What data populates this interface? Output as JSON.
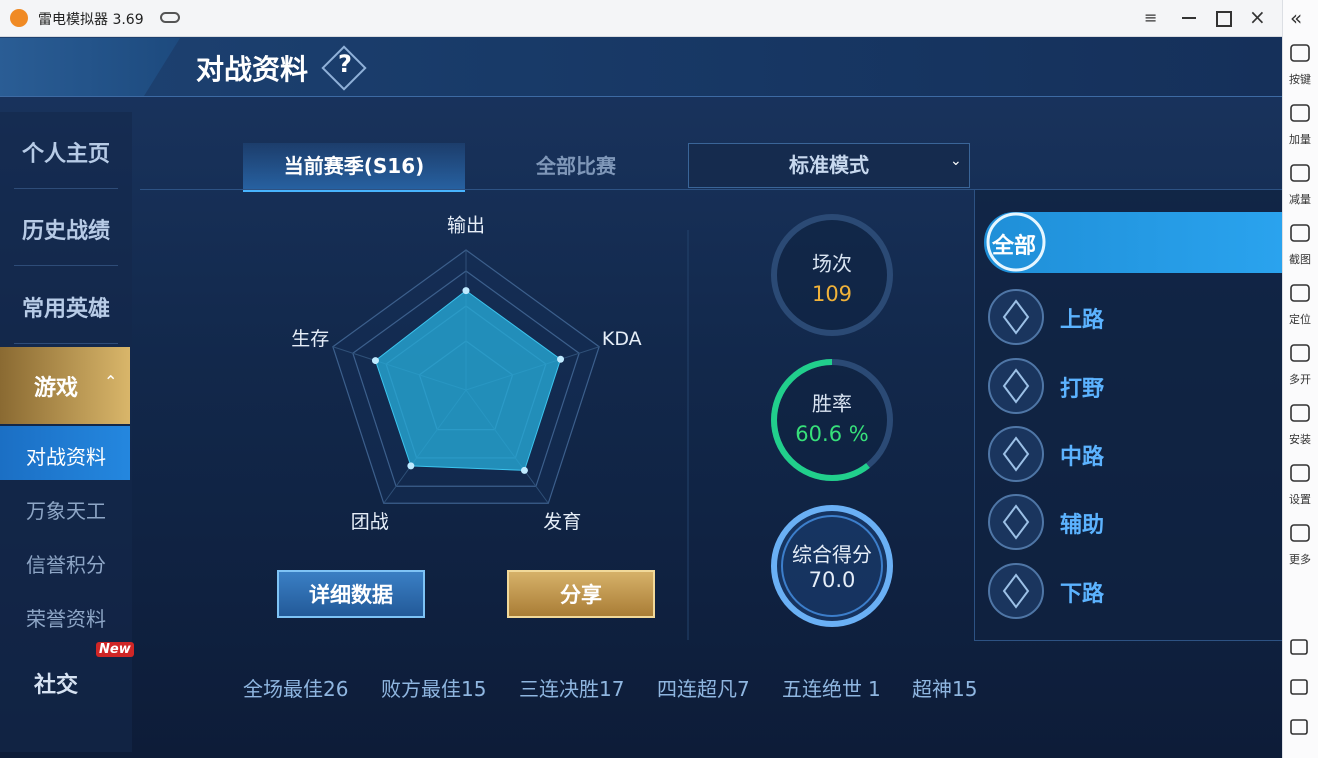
{
  "window": {
    "title": "雷电模拟器 3.69"
  },
  "header": {
    "title": "对战资料",
    "help": "?"
  },
  "menu": {
    "items": [
      "个人主页",
      "历史战绩",
      "常用英雄"
    ],
    "game": "游戏",
    "sub_items": [
      "对战资料",
      "万象天工",
      "信誉积分",
      "荣誉资料"
    ],
    "social": "社交",
    "badge": "New"
  },
  "tabs": [
    "当前赛季(S16)",
    "全部比赛"
  ],
  "mode": "标准模式",
  "radar": {
    "axes": [
      "输出",
      "KDA",
      "发育",
      "团战",
      "生存"
    ],
    "values": [
      71,
      71,
      71,
      67,
      68
    ],
    "rlim": [
      0,
      100
    ]
  },
  "stats": {
    "matches": {
      "label": "场次",
      "value": 109
    },
    "win_rate": {
      "label": "胜率",
      "value": 60.6,
      "value_label": "60.6 %"
    },
    "score": {
      "label": "综合得分",
      "value": "70.0"
    }
  },
  "buttons": [
    "详细数据",
    "分享"
  ],
  "positions": [
    "全部",
    "上路",
    "打野",
    "中路",
    "辅助",
    "下路"
  ],
  "records": [
    {
      "label": "全场最佳",
      "value": 26
    },
    {
      "label": "败方最佳",
      "value": 15
    },
    {
      "label": "三连决胜",
      "value": 17
    },
    {
      "label": "四连超凡",
      "value": 7
    },
    {
      "label": "五连绝世",
      "value": 1
    },
    {
      "label": "超神",
      "value": 15
    }
  ],
  "sidebar": [
    "按键",
    "加量",
    "减量",
    "截图",
    "定位",
    "多开",
    "安装",
    "设置",
    "更多"
  ]
}
